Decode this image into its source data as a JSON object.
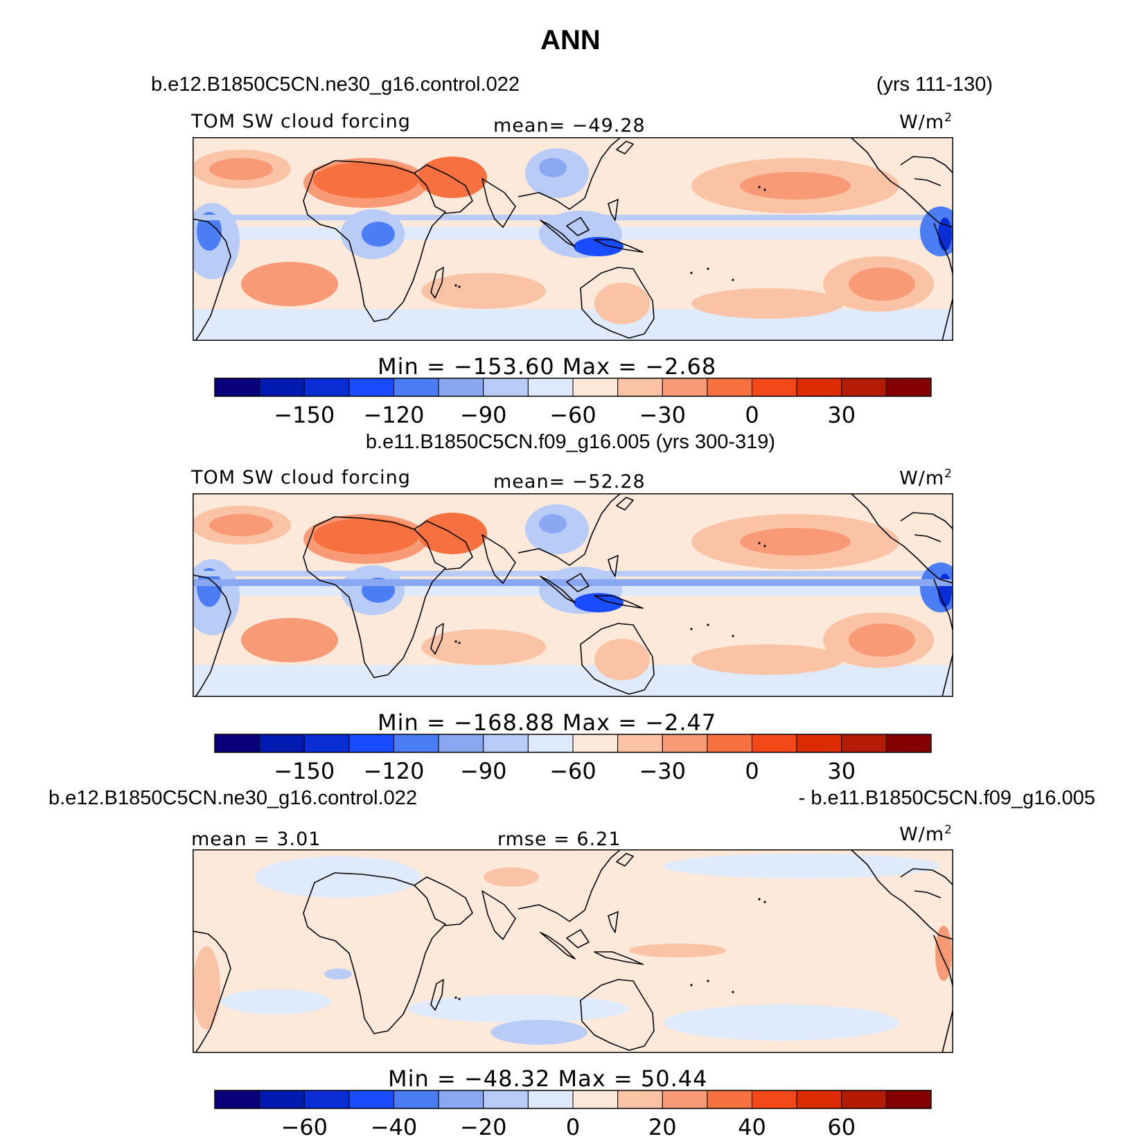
{
  "figure": {
    "title": "ANN"
  },
  "colors": {
    "palette": [
      "#08007a",
      "#0019b0",
      "#0a2ed6",
      "#1a4cff",
      "#4b7df5",
      "#8aa8f2",
      "#b9ccf7",
      "#dfeafc",
      "#fde9d9",
      "#fbc3a6",
      "#f99a76",
      "#f7703f",
      "#f54818",
      "#dc2c06",
      "#b31b04",
      "#850000"
    ],
    "coast": "#000000"
  },
  "chart_data": [
    {
      "type": "heatmap",
      "header_left": "b.e12.B1850C5CN.ne30_g16.control.022",
      "header_right": "(yrs 111-130)",
      "header_center": "",
      "field_label": "TOM SW cloud forcing",
      "stat_center": "mean= −49.28",
      "units_base": "W/m",
      "units_exp": "2",
      "minmax": "Min = −153.60 Max = −2.68",
      "mean": -49.28,
      "min": -153.6,
      "max": -2.68,
      "levels": [
        -165,
        -150,
        -135,
        -120,
        -105,
        -90,
        -75,
        -60,
        -45,
        -30,
        -15,
        0,
        15,
        30,
        45
      ],
      "tick_labels": [
        "−150",
        "−120",
        "−90",
        "−60",
        "−30",
        "0",
        "30"
      ],
      "tick_level_index": [
        1,
        3,
        5,
        7,
        9,
        11,
        13
      ]
    },
    {
      "type": "heatmap",
      "header_left": "",
      "header_right": "",
      "header_center": "b.e11.B1850C5CN.f09_g16.005 (yrs 300-319)",
      "field_label": "TOM SW cloud forcing",
      "stat_center": "mean= −52.28",
      "units_base": "W/m",
      "units_exp": "2",
      "minmax": "Min = −168.88 Max = −2.47",
      "mean": -52.28,
      "min": -168.88,
      "max": -2.47,
      "levels": [
        -165,
        -150,
        -135,
        -120,
        -105,
        -90,
        -75,
        -60,
        -45,
        -30,
        -15,
        0,
        15,
        30,
        45
      ],
      "tick_labels": [
        "−150",
        "−120",
        "−90",
        "−60",
        "−30",
        "0",
        "30"
      ],
      "tick_level_index": [
        1,
        3,
        5,
        7,
        9,
        11,
        13
      ]
    },
    {
      "type": "heatmap",
      "header_left": "b.e12.B1850C5CN.ne30_g16.control.022",
      "header_right": "- b.e11.B1850C5CN.f09_g16.005",
      "header_center": "",
      "field_label": "mean = 3.01",
      "stat_center": "rmse = 6.21",
      "units_base": "W/m",
      "units_exp": "2",
      "minmax": "Min = −48.32 Max = 50.44",
      "mean": 3.01,
      "rmse": 6.21,
      "min": -48.32,
      "max": 50.44,
      "levels": [
        -70,
        -60,
        -50,
        -40,
        -30,
        -20,
        -10,
        0,
        10,
        20,
        30,
        40,
        50,
        60,
        70
      ],
      "tick_labels": [
        "−60",
        "−40",
        "−20",
        "0",
        "20",
        "40",
        "60"
      ],
      "tick_level_index": [
        1,
        3,
        5,
        7,
        9,
        11,
        13
      ]
    }
  ]
}
